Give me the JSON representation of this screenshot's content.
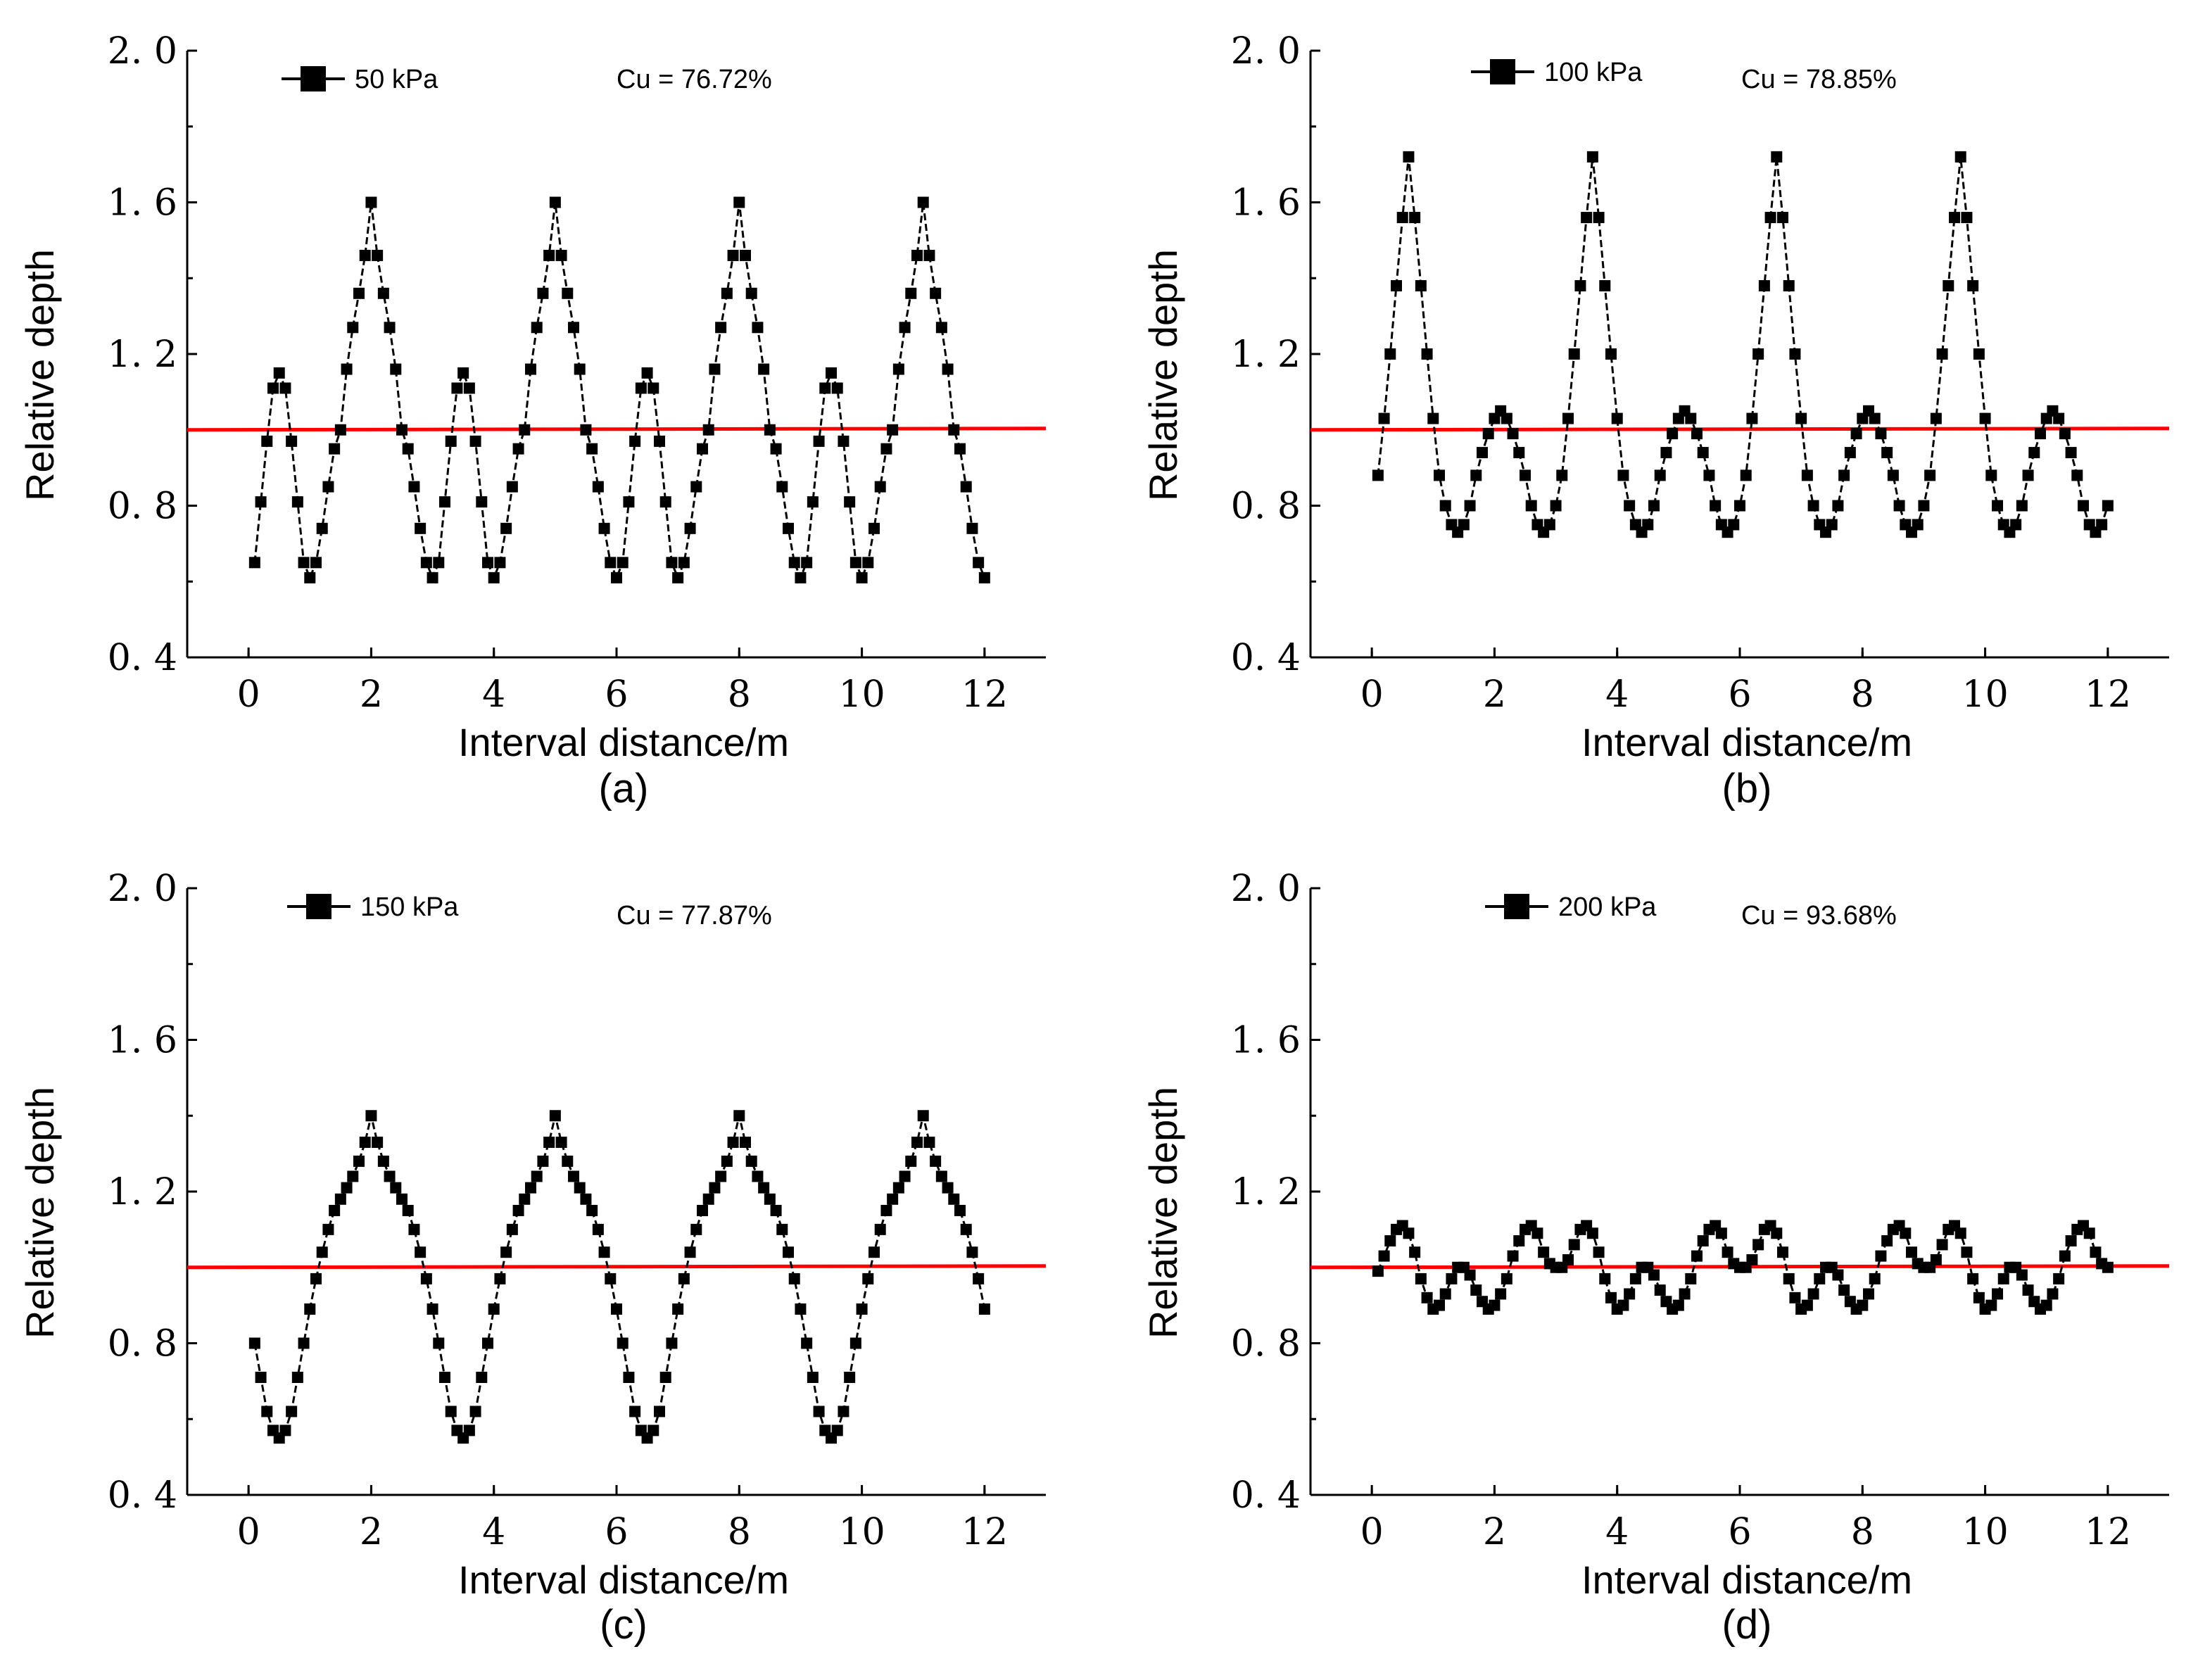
{
  "chart_data": [
    {
      "type": "line",
      "caption": "(a)",
      "legend": "50 kPa",
      "annotation": "Cu = 76.72%",
      "xlabel": "Interval distance/m",
      "ylabel": "Relative depth",
      "xlim": [
        -1,
        13
      ],
      "ylim": [
        0.4,
        2.0
      ],
      "xticks": [
        0,
        2,
        4,
        6,
        8,
        10,
        12
      ],
      "yticks": [
        "0.4",
        "0.8",
        "1.2",
        "1.6",
        "2.0"
      ],
      "reference_line": 1.0,
      "series": [
        {
          "name": "50 kPa",
          "x": [
            0.1,
            0.2,
            0.3,
            0.4,
            0.5,
            0.6,
            0.7,
            0.8,
            0.9,
            1.0,
            1.1,
            1.2,
            1.3,
            1.4,
            1.5,
            1.6,
            1.7,
            1.8,
            1.9,
            2.0,
            2.1,
            2.2,
            2.3,
            2.4,
            2.5,
            2.6,
            2.7,
            2.8,
            2.9,
            3.0,
            3.1,
            3.2,
            3.3,
            3.4,
            3.5,
            3.6,
            3.7,
            3.8,
            3.9,
            4.0,
            4.1,
            4.2,
            4.3,
            4.4,
            4.5,
            4.6,
            4.7,
            4.8,
            4.9,
            5.0,
            5.1,
            5.2,
            5.3,
            5.4,
            5.5,
            5.6,
            5.7,
            5.8,
            5.9,
            6.0,
            6.1,
            6.2,
            6.3,
            6.4,
            6.5,
            6.6,
            6.7,
            6.8,
            6.9,
            7.0,
            7.1,
            7.2,
            7.3,
            7.4,
            7.5,
            7.6,
            7.7,
            7.8,
            7.9,
            8.0,
            8.1,
            8.2,
            8.3,
            8.4,
            8.5,
            8.6,
            8.7,
            8.8,
            8.9,
            9.0,
            9.1,
            9.2,
            9.3,
            9.4,
            9.5,
            9.6,
            9.7,
            9.8,
            9.9,
            10.0,
            10.1,
            10.2,
            10.3,
            10.4,
            10.5,
            10.6,
            10.7,
            10.8,
            10.9,
            11.0,
            11.1,
            11.2,
            11.3,
            11.4,
            11.5,
            11.6,
            11.7,
            11.8,
            11.9,
            12.0
          ],
          "values": [
            0.65,
            0.81,
            0.97,
            1.11,
            1.15,
            1.11,
            0.97,
            0.81,
            0.65,
            0.61,
            0.65,
            0.74,
            0.85,
            0.95,
            1.0,
            1.16,
            1.27,
            1.36,
            1.46,
            1.6,
            1.46,
            1.36,
            1.27,
            1.16,
            1.0,
            0.95,
            0.85,
            0.74,
            0.65,
            0.61,
            0.65,
            0.81,
            0.97,
            1.11,
            1.15,
            1.11,
            0.97,
            0.81,
            0.65,
            0.61,
            0.65,
            0.74,
            0.85,
            0.95,
            1.0,
            1.16,
            1.27,
            1.36,
            1.46,
            1.6,
            1.46,
            1.36,
            1.27,
            1.16,
            1.0,
            0.95,
            0.85,
            0.74,
            0.65,
            0.61,
            0.65,
            0.81,
            0.97,
            1.11,
            1.15,
            1.11,
            0.97,
            0.81,
            0.65,
            0.61,
            0.65,
            0.74,
            0.85,
            0.95,
            1.0,
            1.16,
            1.27,
            1.36,
            1.46,
            1.6,
            1.46,
            1.36,
            1.27,
            1.16,
            1.0,
            0.95,
            0.85,
            0.74,
            0.65,
            0.61,
            0.65,
            0.81,
            0.97,
            1.11,
            1.15,
            1.11,
            0.97,
            0.81,
            0.65,
            0.61,
            0.65,
            0.74,
            0.85,
            0.95,
            1.0,
            1.16,
            1.27,
            1.36,
            1.46,
            1.6,
            1.46,
            1.36,
            1.27,
            1.16,
            1.0,
            0.95,
            0.85,
            0.74,
            0.65,
            0.61
          ]
        }
      ]
    },
    {
      "type": "line",
      "caption": "(b)",
      "legend": "100 kPa",
      "annotation": "Cu = 78.85%",
      "xlabel": "Interval distance/m",
      "ylabel": "Relative depth",
      "xlim": [
        -1,
        13
      ],
      "ylim": [
        0.4,
        2.0
      ],
      "xticks": [
        0,
        2,
        4,
        6,
        8,
        10,
        12
      ],
      "yticks": [
        "0.4",
        "0.8",
        "1.2",
        "1.6",
        "2.0"
      ],
      "reference_line": 1.0,
      "series": [
        {
          "name": "100 kPa",
          "x": [
            0.1,
            0.2,
            0.3,
            0.4,
            0.5,
            0.6,
            0.7,
            0.8,
            0.9,
            1.0,
            1.1,
            1.2,
            1.3,
            1.4,
            1.5,
            1.6,
            1.7,
            1.8,
            1.9,
            2.0,
            2.1,
            2.2,
            2.3,
            2.4,
            2.5,
            2.6,
            2.7,
            2.8,
            2.9,
            3.0,
            3.1,
            3.2,
            3.3,
            3.4,
            3.5,
            3.6,
            3.7,
            3.8,
            3.9,
            4.0,
            4.1,
            4.2,
            4.3,
            4.4,
            4.5,
            4.6,
            4.7,
            4.8,
            4.9,
            5.0,
            5.1,
            5.2,
            5.3,
            5.4,
            5.5,
            5.6,
            5.7,
            5.8,
            5.9,
            6.0,
            6.1,
            6.2,
            6.3,
            6.4,
            6.5,
            6.6,
            6.7,
            6.8,
            6.9,
            7.0,
            7.1,
            7.2,
            7.3,
            7.4,
            7.5,
            7.6,
            7.7,
            7.8,
            7.9,
            8.0,
            8.1,
            8.2,
            8.3,
            8.4,
            8.5,
            8.6,
            8.7,
            8.8,
            8.9,
            9.0,
            9.1,
            9.2,
            9.3,
            9.4,
            9.5,
            9.6,
            9.7,
            9.8,
            9.9,
            10.0,
            10.1,
            10.2,
            10.3,
            10.4,
            10.5,
            10.6,
            10.7,
            10.8,
            10.9,
            11.0,
            11.1,
            11.2,
            11.3,
            11.4,
            11.5,
            11.6,
            11.7,
            11.8,
            11.9,
            12.0
          ],
          "values": [
            0.88,
            1.03,
            1.2,
            1.38,
            1.56,
            1.72,
            1.56,
            1.38,
            1.2,
            1.03,
            0.88,
            0.8,
            0.75,
            0.73,
            0.75,
            0.8,
            0.88,
            0.94,
            0.99,
            1.03,
            1.05,
            1.03,
            0.99,
            0.94,
            0.88,
            0.8,
            0.75,
            0.73,
            0.75,
            0.8,
            0.88,
            1.03,
            1.2,
            1.38,
            1.56,
            1.72,
            1.56,
            1.38,
            1.2,
            1.03,
            0.88,
            0.8,
            0.75,
            0.73,
            0.75,
            0.8,
            0.88,
            0.94,
            0.99,
            1.03,
            1.05,
            1.03,
            0.99,
            0.94,
            0.88,
            0.8,
            0.75,
            0.73,
            0.75,
            0.8,
            0.88,
            1.03,
            1.2,
            1.38,
            1.56,
            1.72,
            1.56,
            1.38,
            1.2,
            1.03,
            0.88,
            0.8,
            0.75,
            0.73,
            0.75,
            0.8,
            0.88,
            0.94,
            0.99,
            1.03,
            1.05,
            1.03,
            0.99,
            0.94,
            0.88,
            0.8,
            0.75,
            0.73,
            0.75,
            0.8,
            0.88,
            1.03,
            1.2,
            1.38,
            1.56,
            1.72,
            1.56,
            1.38,
            1.2,
            1.03,
            0.88,
            0.8,
            0.75,
            0.73,
            0.75,
            0.8,
            0.88,
            0.94,
            0.99,
            1.03,
            1.05,
            1.03,
            0.99,
            0.94,
            0.88,
            0.8,
            0.75,
            0.73,
            0.75,
            0.8
          ]
        }
      ]
    },
    {
      "type": "line",
      "caption": "(c)",
      "legend": "150 kPa",
      "annotation": "Cu = 77.87%",
      "xlabel": "Interval distance/m",
      "ylabel": "Relative depth",
      "xlim": [
        -1,
        13
      ],
      "ylim": [
        0.4,
        2.0
      ],
      "xticks": [
        0,
        2,
        4,
        6,
        8,
        10,
        12
      ],
      "yticks": [
        "0.4",
        "0.8",
        "1.2",
        "1.6",
        "2.0"
      ],
      "reference_line": 1.0,
      "series": [
        {
          "name": "150 kPa",
          "x": [
            0.1,
            0.2,
            0.3,
            0.4,
            0.5,
            0.6,
            0.7,
            0.8,
            0.9,
            1.0,
            1.1,
            1.2,
            1.3,
            1.4,
            1.5,
            1.6,
            1.7,
            1.8,
            1.9,
            2.0,
            2.1,
            2.2,
            2.3,
            2.4,
            2.5,
            2.6,
            2.7,
            2.8,
            2.9,
            3.0,
            3.1,
            3.2,
            3.3,
            3.4,
            3.5,
            3.6,
            3.7,
            3.8,
            3.9,
            4.0,
            4.1,
            4.2,
            4.3,
            4.4,
            4.5,
            4.6,
            4.7,
            4.8,
            4.9,
            5.0,
            5.1,
            5.2,
            5.3,
            5.4,
            5.5,
            5.6,
            5.7,
            5.8,
            5.9,
            6.0,
            6.1,
            6.2,
            6.3,
            6.4,
            6.5,
            6.6,
            6.7,
            6.8,
            6.9,
            7.0,
            7.1,
            7.2,
            7.3,
            7.4,
            7.5,
            7.6,
            7.7,
            7.8,
            7.9,
            8.0,
            8.1,
            8.2,
            8.3,
            8.4,
            8.5,
            8.6,
            8.7,
            8.8,
            8.9,
            9.0,
            9.1,
            9.2,
            9.3,
            9.4,
            9.5,
            9.6,
            9.7,
            9.8,
            9.9,
            10.0,
            10.1,
            10.2,
            10.3,
            10.4,
            10.5,
            10.6,
            10.7,
            10.8,
            10.9,
            11.0,
            11.1,
            11.2,
            11.3,
            11.4,
            11.5,
            11.6,
            11.7,
            11.8,
            11.9,
            12.0
          ],
          "values": [
            0.8,
            0.71,
            0.62,
            0.57,
            0.55,
            0.57,
            0.62,
            0.71,
            0.8,
            0.89,
            0.97,
            1.04,
            1.1,
            1.15,
            1.18,
            1.21,
            1.24,
            1.28,
            1.33,
            1.4,
            1.33,
            1.28,
            1.24,
            1.21,
            1.18,
            1.15,
            1.1,
            1.04,
            0.97,
            0.89,
            0.8,
            0.71,
            0.62,
            0.57,
            0.55,
            0.57,
            0.62,
            0.71,
            0.8,
            0.89,
            0.97,
            1.04,
            1.1,
            1.15,
            1.18,
            1.21,
            1.24,
            1.28,
            1.33,
            1.4,
            1.33,
            1.28,
            1.24,
            1.21,
            1.18,
            1.15,
            1.1,
            1.04,
            0.97,
            0.89,
            0.8,
            0.71,
            0.62,
            0.57,
            0.55,
            0.57,
            0.62,
            0.71,
            0.8,
            0.89,
            0.97,
            1.04,
            1.1,
            1.15,
            1.18,
            1.21,
            1.24,
            1.28,
            1.33,
            1.4,
            1.33,
            1.28,
            1.24,
            1.21,
            1.18,
            1.15,
            1.1,
            1.04,
            0.97,
            0.89,
            0.8,
            0.71,
            0.62,
            0.57,
            0.55,
            0.57,
            0.62,
            0.71,
            0.8,
            0.89,
            0.97,
            1.04,
            1.1,
            1.15,
            1.18,
            1.21,
            1.24,
            1.28,
            1.33,
            1.4,
            1.33,
            1.28,
            1.24,
            1.21,
            1.18,
            1.15,
            1.1,
            1.04,
            0.97,
            0.89
          ]
        }
      ]
    },
    {
      "type": "line",
      "caption": "(d)",
      "legend": "200 kPa",
      "annotation": "Cu = 93.68%",
      "xlabel": "Interval distance/m",
      "ylabel": "Relative depth",
      "xlim": [
        -1,
        13
      ],
      "ylim": [
        0.4,
        2.0
      ],
      "xticks": [
        0,
        2,
        4,
        6,
        8,
        10,
        12
      ],
      "yticks": [
        "0.4",
        "0.8",
        "1.2",
        "1.6",
        "2.0"
      ],
      "reference_line": 1.0,
      "series": [
        {
          "name": "200 kPa",
          "x": [
            0.1,
            0.2,
            0.3,
            0.4,
            0.5,
            0.6,
            0.7,
            0.8,
            0.9,
            1.0,
            1.1,
            1.2,
            1.3,
            1.4,
            1.5,
            1.6,
            1.7,
            1.8,
            1.9,
            2.0,
            2.1,
            2.2,
            2.3,
            2.4,
            2.5,
            2.6,
            2.7,
            2.8,
            2.9,
            3.0,
            3.1,
            3.2,
            3.3,
            3.4,
            3.5,
            3.6,
            3.7,
            3.8,
            3.9,
            4.0,
            4.1,
            4.2,
            4.3,
            4.4,
            4.5,
            4.6,
            4.7,
            4.8,
            4.9,
            5.0,
            5.1,
            5.2,
            5.3,
            5.4,
            5.5,
            5.6,
            5.7,
            5.8,
            5.9,
            6.0,
            6.1,
            6.2,
            6.3,
            6.4,
            6.5,
            6.6,
            6.7,
            6.8,
            6.9,
            7.0,
            7.1,
            7.2,
            7.3,
            7.4,
            7.5,
            7.6,
            7.7,
            7.8,
            7.9,
            8.0,
            8.1,
            8.2,
            8.3,
            8.4,
            8.5,
            8.6,
            8.7,
            8.8,
            8.9,
            9.0,
            9.1,
            9.2,
            9.3,
            9.4,
            9.5,
            9.6,
            9.7,
            9.8,
            9.9,
            10.0,
            10.1,
            10.2,
            10.3,
            10.4,
            10.5,
            10.6,
            10.7,
            10.8,
            10.9,
            11.0,
            11.1,
            11.2,
            11.3,
            11.4,
            11.5,
            11.6,
            11.7,
            11.8,
            11.9,
            12.0
          ],
          "values": [
            0.99,
            1.03,
            1.07,
            1.1,
            1.11,
            1.09,
            1.04,
            0.97,
            0.92,
            0.89,
            0.9,
            0.93,
            0.97,
            1.0,
            1.0,
            0.98,
            0.94,
            0.91,
            0.89,
            0.9,
            0.93,
            0.97,
            1.03,
            1.07,
            1.1,
            1.11,
            1.09,
            1.04,
            1.01,
            1.0,
            1.0,
            1.02,
            1.06,
            1.1,
            1.11,
            1.09,
            1.04,
            0.97,
            0.92,
            0.89,
            0.9,
            0.93,
            0.97,
            1.0,
            1.0,
            0.98,
            0.94,
            0.91,
            0.89,
            0.9,
            0.93,
            0.97,
            1.03,
            1.07,
            1.1,
            1.11,
            1.09,
            1.04,
            1.01,
            1.0,
            1.0,
            1.02,
            1.06,
            1.1,
            1.11,
            1.09,
            1.04,
            0.97,
            0.92,
            0.89,
            0.9,
            0.93,
            0.97,
            1.0,
            1.0,
            0.98,
            0.94,
            0.91,
            0.89,
            0.9,
            0.93,
            0.97,
            1.03,
            1.07,
            1.1,
            1.11,
            1.09,
            1.04,
            1.01,
            1.0,
            1.0,
            1.02,
            1.06,
            1.1,
            1.11,
            1.09,
            1.04,
            0.97,
            0.92,
            0.89,
            0.9,
            0.93,
            0.97,
            1.0,
            1.0,
            0.98,
            0.94,
            0.91,
            0.89,
            0.9,
            0.93,
            0.97,
            1.03,
            1.07,
            1.1,
            1.11,
            1.09,
            1.04,
            1.01,
            1.0
          ]
        }
      ]
    }
  ]
}
